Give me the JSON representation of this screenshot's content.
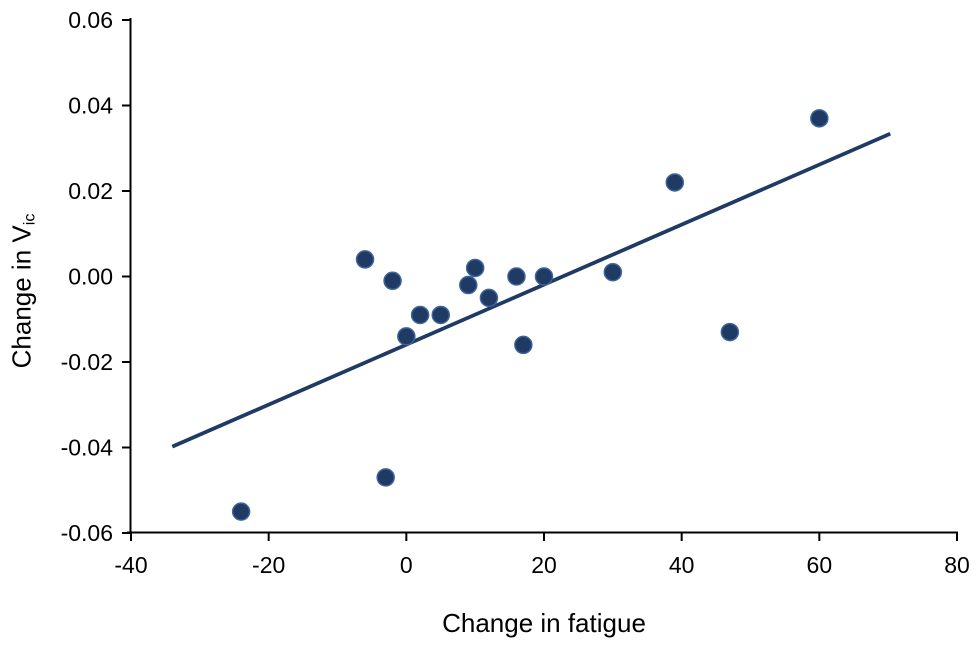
{
  "figure": {
    "background": "#ffffff"
  },
  "chart_data": {
    "type": "scatter",
    "title": "",
    "xlabel": "Change in fatigue",
    "ylabel": "Change in V",
    "ylabel_subscript": "ic",
    "xlim": [
      -40,
      80
    ],
    "ylim": [
      -0.06,
      0.06
    ],
    "x_ticks": [
      -40,
      -20,
      0,
      20,
      40,
      60,
      80
    ],
    "y_ticks": [
      0.06,
      0.04,
      0.02,
      0,
      -0.02,
      -0.04,
      -0.06
    ],
    "x_tick_labels": [
      "-40",
      "-20",
      "0",
      "20",
      "40",
      "60",
      "80"
    ],
    "y_tick_labels": [
      "0.06",
      "0.04",
      "0.02",
      "0.00",
      "-0.02",
      "-0.04",
      "-0.06"
    ],
    "grid": false,
    "legend": "none",
    "marker_color": "#1F3A63",
    "marker_edge_color": "#3D639C",
    "trendline_color": "#1F3A63",
    "axis_color": "#000000",
    "points": [
      {
        "x": -24,
        "y": -0.055
      },
      {
        "x": -6,
        "y": 0.004
      },
      {
        "x": -3,
        "y": -0.047
      },
      {
        "x": -2,
        "y": -0.001
      },
      {
        "x": 0,
        "y": -0.014
      },
      {
        "x": 2,
        "y": -0.009
      },
      {
        "x": 5,
        "y": -0.009
      },
      {
        "x": 9,
        "y": -0.002
      },
      {
        "x": 10,
        "y": 0.002
      },
      {
        "x": 12,
        "y": -0.005
      },
      {
        "x": 16,
        "y": 0.0
      },
      {
        "x": 17,
        "y": -0.016
      },
      {
        "x": 20,
        "y": 0.0
      },
      {
        "x": 30,
        "y": 0.001
      },
      {
        "x": 39,
        "y": 0.022
      },
      {
        "x": 47,
        "y": -0.013
      },
      {
        "x": 60,
        "y": 0.037
      }
    ],
    "trendline": {
      "x_start": -34,
      "y_start": -0.0398,
      "x_end": 70.3,
      "y_end": 0.0334
    }
  }
}
